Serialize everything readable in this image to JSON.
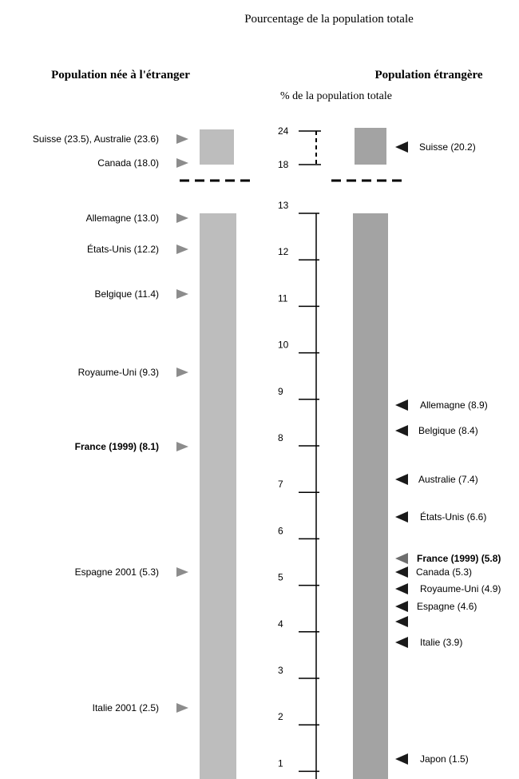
{
  "chart_data": {
    "type": "bar",
    "title": "Pourcentage de la population totale",
    "left_heading": "Population née à l'étranger",
    "right_heading": "Population étrangère",
    "axis_label": "% de la population totale",
    "axis_ticks": [
      "24",
      "18",
      "13",
      "12",
      "11",
      "10",
      "9",
      "8",
      "7",
      "6",
      "5",
      "4",
      "3",
      "2",
      "1"
    ],
    "axis_break": {
      "from": 13,
      "to": 18
    },
    "colors": {
      "left_bar": "#bdbdbd",
      "right_bar": "#a3a3a3",
      "left_marker": "#8c8c8c",
      "right_marker": "#1a1a1a",
      "right_marker_france": "#6e6e6e"
    },
    "series": [
      {
        "name": "Population née à l'étranger",
        "points": [
          {
            "label": "Suisse (23.5), Australie (23.6)",
            "value": 23.5,
            "bold": false
          },
          {
            "label": "Canada (18.0)",
            "value": 18.0,
            "bold": false
          },
          {
            "label": "Allemagne (13.0)",
            "value": 13.0,
            "bold": false
          },
          {
            "label": "États-Unis (12.2)",
            "value": 12.2,
            "bold": false
          },
          {
            "label": "Belgique (11.4)",
            "value": 11.4,
            "bold": false
          },
          {
            "label": "Royaume-Uni (9.3)",
            "value": 9.3,
            "bold": false
          },
          {
            "label": "France  (1999) (8.1)",
            "value": 8.1,
            "bold": true
          },
          {
            "label": "Espagne 2001 (5.3)",
            "value": 5.3,
            "bold": false
          },
          {
            "label": "Italie 2001 (2.5)",
            "value": 2.5,
            "bold": false
          }
        ]
      },
      {
        "name": "Population étrangère",
        "points": [
          {
            "label": "Suisse (20.2)",
            "value": 20.2,
            "bold": false
          },
          {
            "label": "Allemagne (8.9)",
            "value": 8.9,
            "bold": false
          },
          {
            "label": "Belgique (8.4)",
            "value": 8.4,
            "bold": false
          },
          {
            "label": "Australie (7.4)",
            "value": 7.4,
            "bold": false
          },
          {
            "label": "États-Unis (6.6)",
            "value": 6.6,
            "bold": false
          },
          {
            "label": "France (1999) (5.8)",
            "value": 5.8,
            "bold": true
          },
          {
            "label": "Canada (5.3)",
            "value": 5.3,
            "bold": false
          },
          {
            "label": "Royaume-Uni (4.9)",
            "value": 4.9,
            "bold": false
          },
          {
            "label": "Espagne (4.6)",
            "value": 4.6,
            "bold": false
          },
          {
            "label": "",
            "value": 4.3,
            "bold": false
          },
          {
            "label": "Italie (3.9)",
            "value": 3.9,
            "bold": false
          },
          {
            "label": "Japon (1.5)",
            "value": 1.5,
            "bold": false
          }
        ]
      }
    ]
  }
}
